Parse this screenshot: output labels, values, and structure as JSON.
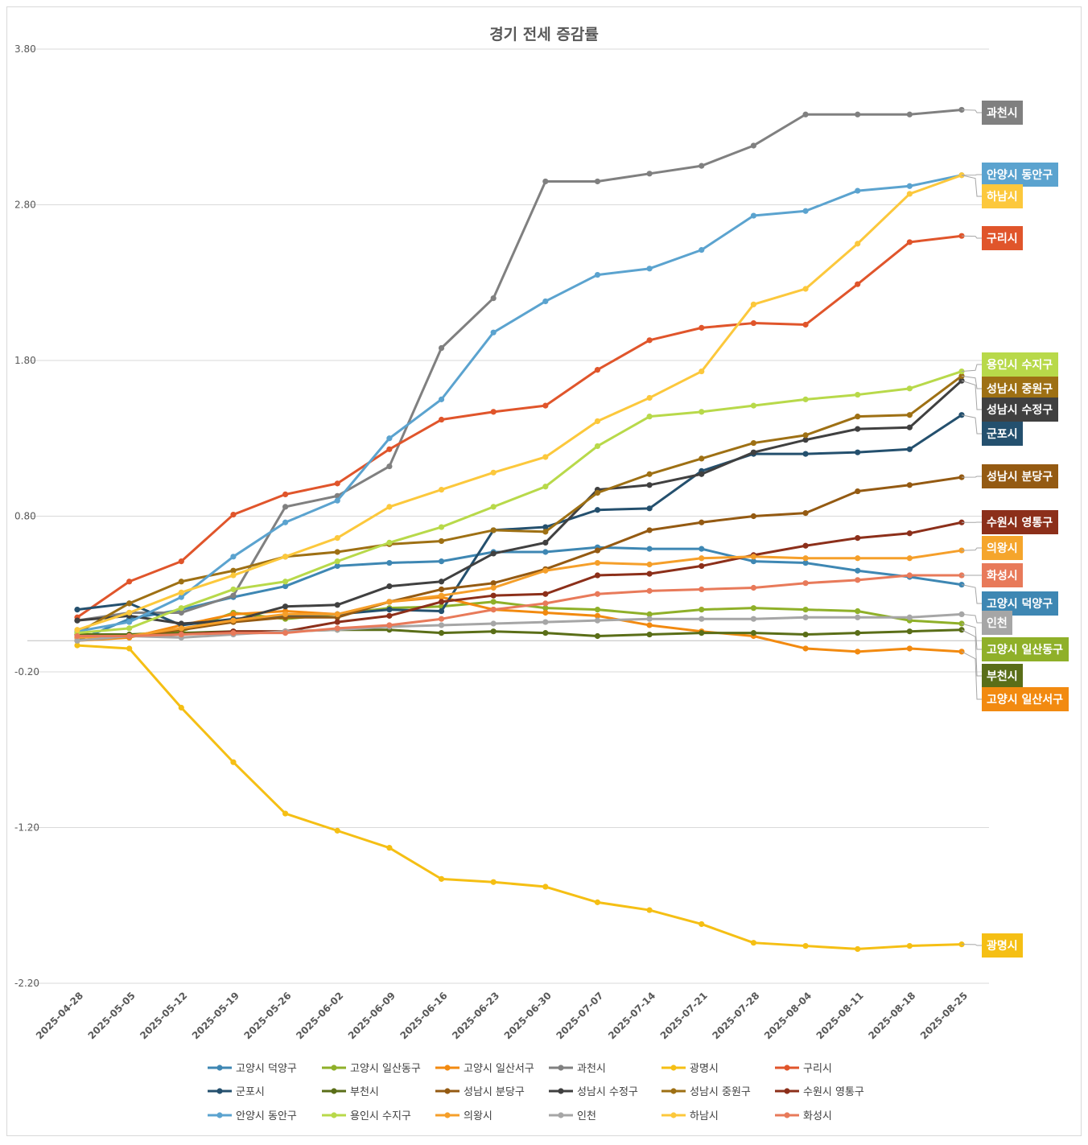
{
  "chart_data": {
    "type": "line",
    "title": "경기 전세 증감률",
    "ylim": [
      -2.2,
      3.8
    ],
    "yticks": [
      3.8,
      2.8,
      1.8,
      0.8,
      -0.2,
      -1.2,
      -2.2
    ],
    "yticks_text": [
      "3.80",
      "2.80",
      "1.80",
      "0.80",
      "-0.20",
      "-1.20",
      "-2.20"
    ],
    "grid": true,
    "legend_position": "bottom",
    "x": [
      "2025-04-28",
      "2025-05-05",
      "2025-05-12",
      "2025-05-19",
      "2025-05-26",
      "2025-06-02",
      "2025-06-09",
      "2025-06-16",
      "2025-06-23",
      "2025-06-30",
      "2025-07-07",
      "2025-07-14",
      "2025-07-21",
      "2025-07-28",
      "2025-08-04",
      "2025-08-11",
      "2025-08-18",
      "2025-08-25"
    ],
    "series": [
      {
        "name": "고양시 덕양구",
        "color": "#3e87b3",
        "labelColor": "#3e87b3",
        "values": [
          0.0,
          0.14,
          0.2,
          0.28,
          0.35,
          0.48,
          0.5,
          0.51,
          0.57,
          0.57,
          0.6,
          0.59,
          0.59,
          0.51,
          0.5,
          0.45,
          0.41,
          0.36
        ]
      },
      {
        "name": "고양시 일산동구",
        "color": "#8fb029",
        "labelColor": "#8fb029",
        "values": [
          0.04,
          0.04,
          0.06,
          0.18,
          0.14,
          0.17,
          0.21,
          0.22,
          0.25,
          0.21,
          0.2,
          0.17,
          0.2,
          0.21,
          0.2,
          0.19,
          0.13,
          0.11
        ]
      },
      {
        "name": "고양시 일산서구",
        "color": "#f28a10",
        "labelColor": "#f28a10",
        "values": [
          0.0,
          0.02,
          0.1,
          0.17,
          0.19,
          0.17,
          0.25,
          0.28,
          0.2,
          0.18,
          0.16,
          0.1,
          0.06,
          0.03,
          -0.05,
          -0.07,
          -0.05,
          -0.07
        ]
      },
      {
        "name": "과천시",
        "color": "#808080",
        "labelColor": "#808080",
        "values": [
          0.13,
          0.18,
          0.18,
          0.29,
          0.86,
          0.93,
          1.12,
          1.88,
          2.2,
          2.95,
          2.95,
          3.0,
          3.05,
          3.18,
          3.38,
          3.38,
          3.38,
          3.41
        ]
      },
      {
        "name": "광명시",
        "color": "#f5bf14",
        "labelColor": "#f5bf14",
        "values": [
          -0.03,
          -0.05,
          -0.43,
          -0.78,
          -1.11,
          -1.22,
          -1.33,
          -1.53,
          -1.55,
          -1.58,
          -1.68,
          -1.73,
          -1.82,
          -1.94,
          -1.96,
          -1.98,
          -1.96,
          -1.95
        ]
      },
      {
        "name": "구리시",
        "color": "#e0552b",
        "labelColor": "#e0552b",
        "values": [
          0.15,
          0.38,
          0.51,
          0.81,
          0.94,
          1.01,
          1.23,
          1.42,
          1.47,
          1.51,
          1.74,
          1.93,
          2.01,
          2.04,
          2.03,
          2.29,
          2.56,
          2.6
        ]
      },
      {
        "name": "군포시",
        "color": "#24506e",
        "labelColor": "#24506e",
        "values": [
          0.2,
          0.24,
          0.1,
          0.14,
          0.16,
          0.17,
          0.2,
          0.19,
          0.71,
          0.73,
          0.84,
          0.85,
          1.09,
          1.2,
          1.2,
          1.21,
          1.23,
          1.45
        ]
      },
      {
        "name": "부천시",
        "color": "#5a6e18",
        "labelColor": "#5a6e18",
        "values": [
          0.04,
          0.04,
          0.05,
          0.06,
          0.06,
          0.07,
          0.07,
          0.05,
          0.06,
          0.05,
          0.03,
          0.04,
          0.05,
          0.05,
          0.04,
          0.05,
          0.06,
          0.07
        ]
      },
      {
        "name": "성남시 분당구",
        "color": "#945a12",
        "labelColor": "#945a12",
        "values": [
          0.02,
          0.03,
          0.07,
          0.12,
          0.15,
          0.15,
          0.25,
          0.33,
          0.37,
          0.46,
          0.58,
          0.71,
          0.76,
          0.8,
          0.82,
          0.96,
          1.0,
          1.05
        ]
      },
      {
        "name": "성남시 수정구",
        "color": "#404040",
        "labelColor": "#404040",
        "values": [
          0.13,
          0.16,
          0.11,
          0.13,
          0.22,
          0.23,
          0.35,
          0.38,
          0.56,
          0.63,
          0.97,
          1.0,
          1.07,
          1.21,
          1.29,
          1.36,
          1.37,
          1.67
        ]
      },
      {
        "name": "성남시 중원구",
        "color": "#9e7014",
        "labelColor": "#9e7014",
        "values": [
          0.05,
          0.24,
          0.38,
          0.45,
          0.54,
          0.57,
          0.62,
          0.64,
          0.71,
          0.7,
          0.95,
          1.07,
          1.17,
          1.27,
          1.32,
          1.44,
          1.45,
          1.7
        ]
      },
      {
        "name": "수원시 영통구",
        "color": "#8c2f1a",
        "labelColor": "#8c2f1a",
        "values": [
          0.03,
          0.03,
          0.04,
          0.06,
          0.06,
          0.12,
          0.16,
          0.25,
          0.29,
          0.3,
          0.42,
          0.43,
          0.48,
          0.55,
          0.61,
          0.66,
          0.69,
          0.76
        ]
      },
      {
        "name": "안양시 동안구",
        "color": "#5ba3cf",
        "labelColor": "#5ba3cf",
        "values": [
          0.06,
          0.12,
          0.28,
          0.54,
          0.76,
          0.9,
          1.3,
          1.55,
          1.98,
          2.18,
          2.35,
          2.39,
          2.51,
          2.73,
          2.76,
          2.89,
          2.92,
          2.99
        ]
      },
      {
        "name": "용인시 수지구",
        "color": "#b8d94a",
        "labelColor": "#b8d94a",
        "values": [
          0.05,
          0.08,
          0.21,
          0.33,
          0.38,
          0.51,
          0.63,
          0.73,
          0.86,
          0.99,
          1.25,
          1.44,
          1.47,
          1.51,
          1.55,
          1.58,
          1.62,
          1.73
        ]
      },
      {
        "name": "의왕시",
        "color": "#f59f2a",
        "labelColor": "#f5a52c",
        "values": [
          0.02,
          0.03,
          0.08,
          0.13,
          0.17,
          0.17,
          0.25,
          0.29,
          0.34,
          0.45,
          0.5,
          0.49,
          0.53,
          0.54,
          0.53,
          0.53,
          0.53,
          0.58
        ]
      },
      {
        "name": "인천",
        "color": "#a6a6a6",
        "labelColor": "#a6a6a6",
        "values": [
          0.0,
          0.03,
          0.02,
          0.04,
          0.06,
          0.07,
          0.09,
          0.1,
          0.11,
          0.12,
          0.13,
          0.14,
          0.14,
          0.14,
          0.15,
          0.15,
          0.15,
          0.17
        ]
      },
      {
        "name": "하남시",
        "color": "#fcc83c",
        "labelColor": "#fcc83c",
        "values": [
          0.07,
          0.18,
          0.31,
          0.42,
          0.54,
          0.66,
          0.86,
          0.97,
          1.08,
          1.18,
          1.41,
          1.56,
          1.73,
          2.16,
          2.26,
          2.55,
          2.87,
          2.99
        ]
      },
      {
        "name": "화성시",
        "color": "#e87a5a",
        "labelColor": "#e87a5a",
        "values": [
          0.03,
          0.03,
          0.04,
          0.05,
          0.05,
          0.08,
          0.1,
          0.14,
          0.2,
          0.24,
          0.3,
          0.32,
          0.33,
          0.34,
          0.37,
          0.39,
          0.42,
          0.42
        ]
      }
    ],
    "end_labels": [
      {
        "name": "과천시",
        "slot": 0
      },
      {
        "name": "안양시 동안구",
        "slot": 1
      },
      {
        "name": "하남시",
        "slot": 2
      },
      {
        "name": "구리시",
        "slot": 3
      },
      {
        "name": "용인시 수지구",
        "slot": 4
      },
      {
        "name": "성남시 중원구",
        "slot": 5
      },
      {
        "name": "성남시 수정구",
        "slot": 6
      },
      {
        "name": "군포시",
        "slot": 7
      },
      {
        "name": "성남시 분당구",
        "slot": 8
      },
      {
        "name": "수원시 영통구",
        "slot": 9
      },
      {
        "name": "의왕시",
        "slot": 10
      },
      {
        "name": "화성시",
        "slot": 11
      },
      {
        "name": "고양시 덕양구",
        "slot": 12
      },
      {
        "name": "인천",
        "slot": 13
      },
      {
        "name": "고양시 일산동구",
        "slot": 14
      },
      {
        "name": "부천시",
        "slot": 15
      },
      {
        "name": "고양시 일산서구",
        "slot": 16
      },
      {
        "name": "광명시",
        "slot": 17
      }
    ]
  }
}
